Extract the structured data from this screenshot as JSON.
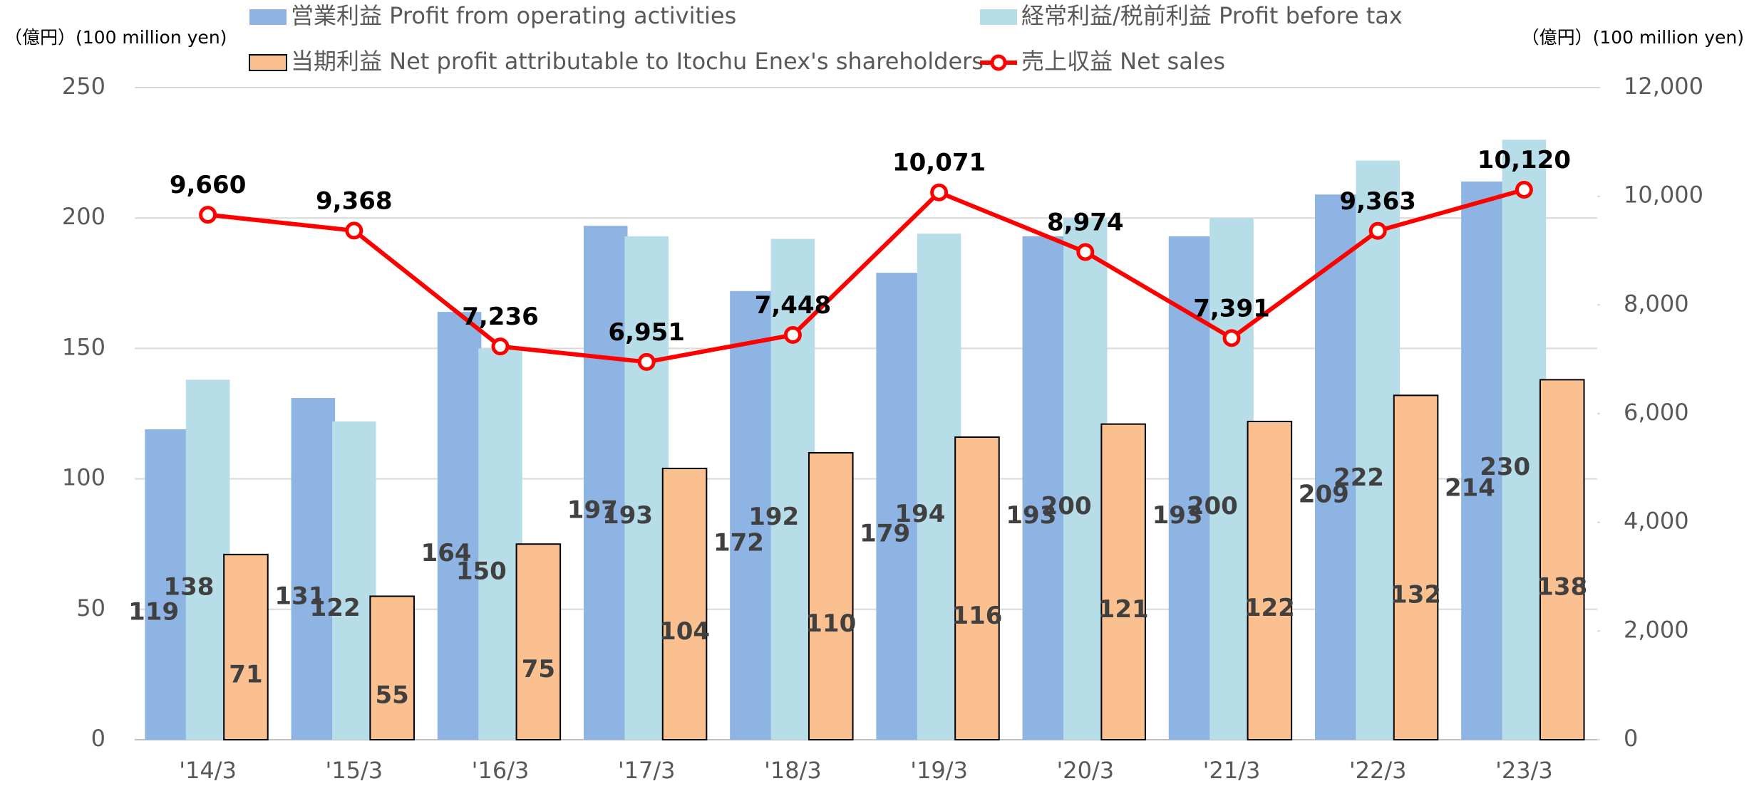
{
  "chart_data": {
    "type": "bar",
    "y_axis_label": "（億円）(100 million yen)",
    "y2_axis_label": "（億円）(100 million yen)",
    "categories": [
      "'14/3",
      "'15/3",
      "'16/3",
      "'17/3",
      "'18/3",
      "'19/3",
      "'20/3",
      "'21/3",
      "'22/3",
      "'23/3"
    ],
    "series": [
      {
        "name": "営業利益 Profit from operating activities",
        "color": "#8eb4e3",
        "values": [
          119,
          131,
          164,
          197,
          172,
          179,
          193,
          193,
          209,
          214
        ]
      },
      {
        "name": "経常利益/税前利益 Profit before tax",
        "color": "#b7dde8",
        "values": [
          138,
          122,
          150,
          193,
          192,
          194,
          200,
          200,
          222,
          230
        ]
      },
      {
        "name": "当期利益 Net profit attributable to Itochu Enex's shareholders",
        "color": "#fac090",
        "values": [
          71,
          55,
          75,
          104,
          110,
          116,
          121,
          122,
          132,
          138
        ]
      },
      {
        "name": "売上収益 Net sales",
        "color": "#ff0000",
        "type": "line",
        "axis": "y2",
        "values": [
          9660,
          9368,
          7236,
          6951,
          7448,
          10071,
          8974,
          7391,
          9363,
          10120
        ],
        "value_labels": [
          "9,660",
          "9,368",
          "7,236",
          "6,951",
          "7,448",
          "10,071",
          "8,974",
          "7,391",
          "9,363",
          "10,120"
        ]
      }
    ],
    "ylim": [
      0,
      250
    ],
    "yticks": [
      0,
      50,
      100,
      150,
      200,
      250
    ],
    "y2lim": [
      0,
      12000
    ],
    "y2ticks": [
      0,
      {
        "value": 2000,
        "label": "2,000"
      },
      {
        "value": 4000,
        "label": "4,000"
      },
      {
        "value": 6000,
        "label": "6,000"
      },
      {
        "value": 8000,
        "label": "8,000"
      },
      {
        "value": 10000,
        "label": "10,000"
      },
      {
        "value": 12000,
        "label": "12,000"
      }
    ],
    "grid": true
  }
}
